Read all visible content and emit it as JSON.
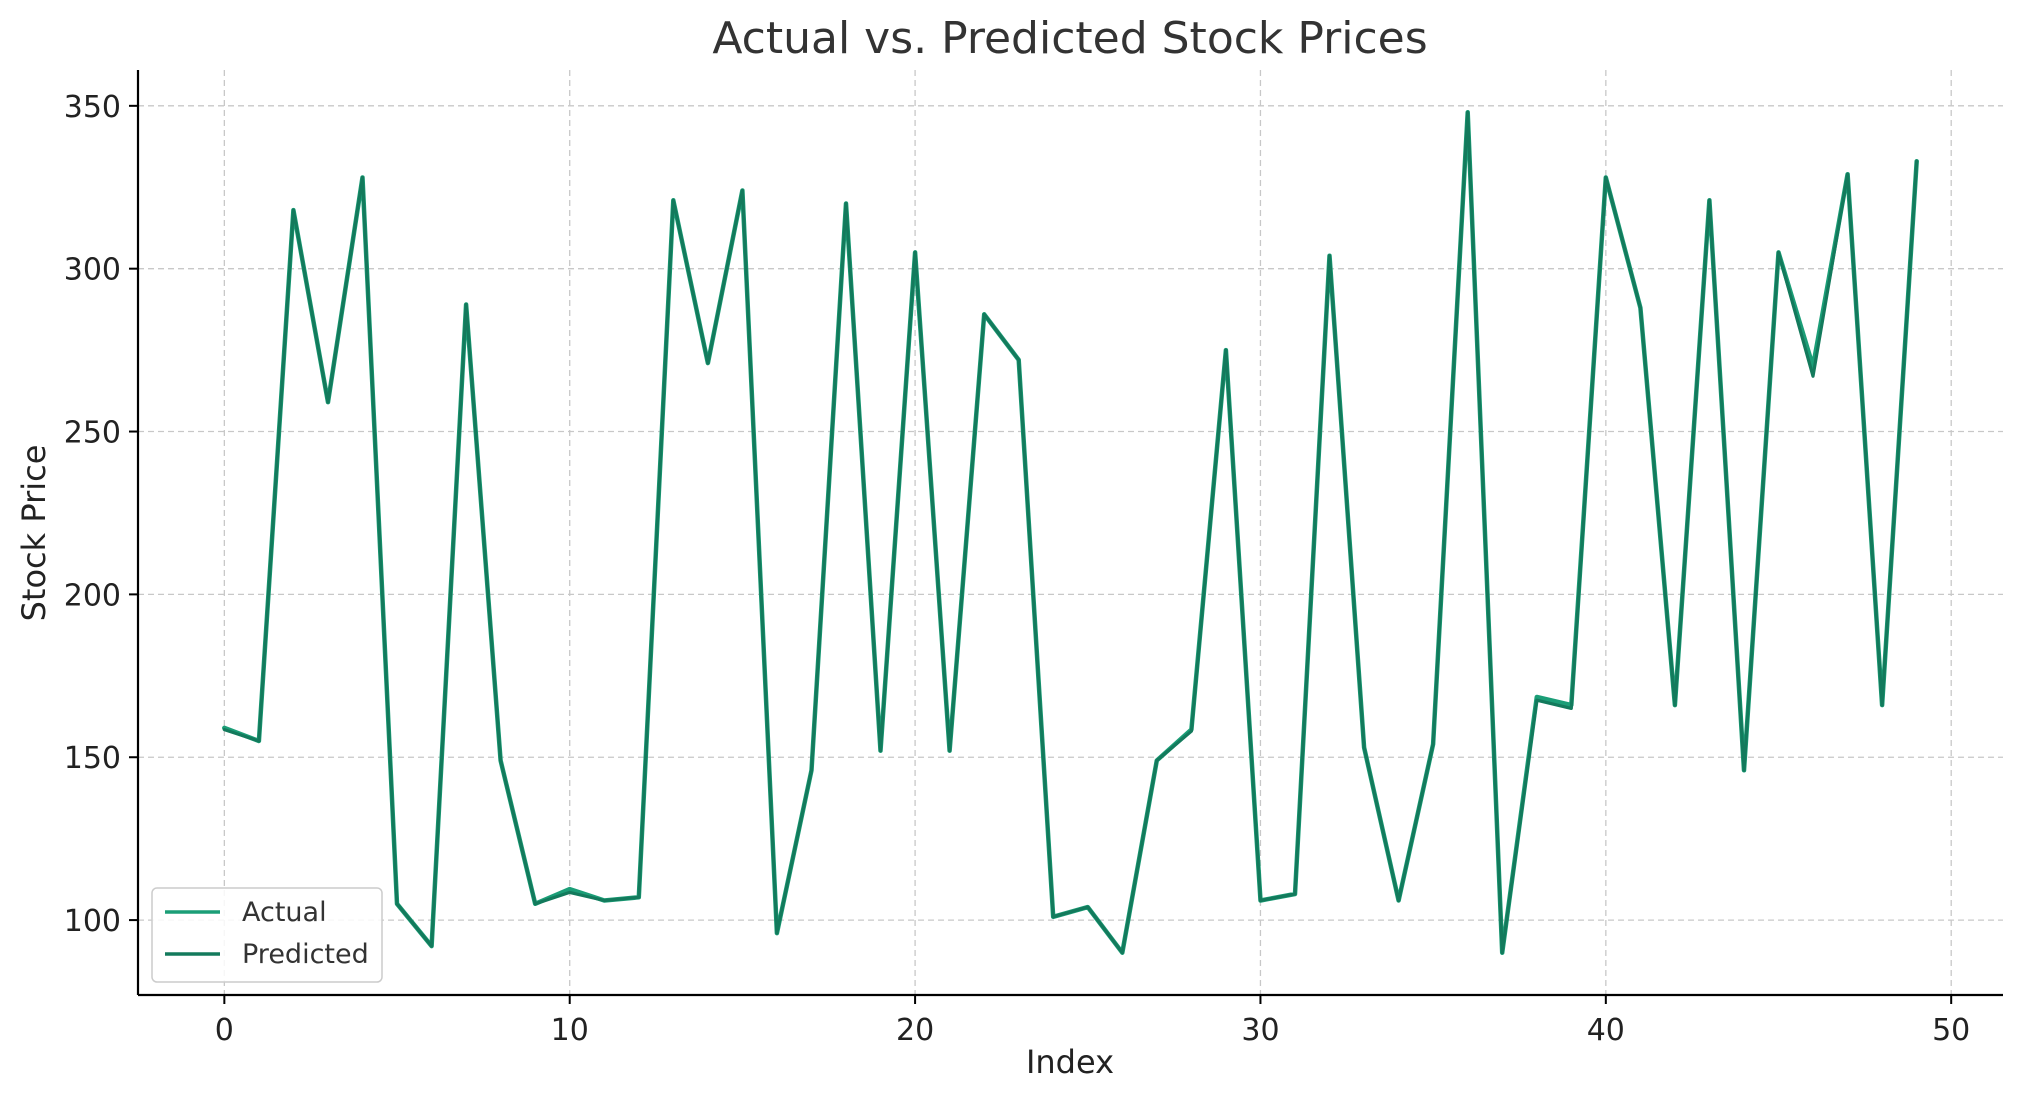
{
  "chart_data": {
    "type": "line",
    "title": "Actual vs. Predicted Stock Prices",
    "xlabel": "Index",
    "ylabel": "Stock Price",
    "xlim": [
      -2.5,
      51.5
    ],
    "ylim": [
      77,
      361
    ],
    "xticks": [
      0,
      10,
      20,
      30,
      40,
      50
    ],
    "yticks": [
      100,
      150,
      200,
      250,
      300,
      350
    ],
    "grid": true,
    "legend_position": "lower-left",
    "x": [
      0,
      1,
      2,
      3,
      4,
      5,
      6,
      7,
      8,
      9,
      10,
      11,
      12,
      13,
      14,
      15,
      16,
      17,
      18,
      19,
      20,
      21,
      22,
      23,
      24,
      25,
      26,
      27,
      28,
      29,
      30,
      31,
      32,
      33,
      34,
      35,
      36,
      37,
      38,
      39,
      40,
      41,
      42,
      43,
      44,
      45,
      46,
      47,
      48,
      49
    ],
    "series": [
      {
        "name": "Actual",
        "color": "#1b9e77",
        "values": [
          159,
          155,
          318,
          259,
          328,
          105,
          92,
          289,
          149,
          105,
          109.5,
          106,
          107,
          321,
          271,
          324,
          96,
          146,
          320,
          152,
          305,
          152,
          286,
          272,
          101,
          104,
          90,
          149,
          158.5,
          275,
          106,
          108,
          304,
          153,
          106,
          154,
          348,
          90,
          168.5,
          166,
          328,
          288,
          166,
          321,
          146,
          305,
          270,
          329,
          166,
          333
        ]
      },
      {
        "name": "Predicted",
        "color": "#137a5c",
        "values": [
          158.5,
          155,
          318,
          259,
          328,
          105,
          92,
          289,
          149,
          105,
          108.5,
          106,
          107,
          321,
          271,
          324,
          96,
          146,
          320,
          152,
          305,
          152,
          286,
          272,
          101,
          104,
          90,
          149,
          158,
          275,
          106,
          108,
          304,
          153,
          106,
          154,
          348,
          90,
          167.5,
          165,
          328,
          288,
          166,
          321,
          146,
          305,
          267,
          329,
          166,
          333
        ]
      }
    ]
  }
}
